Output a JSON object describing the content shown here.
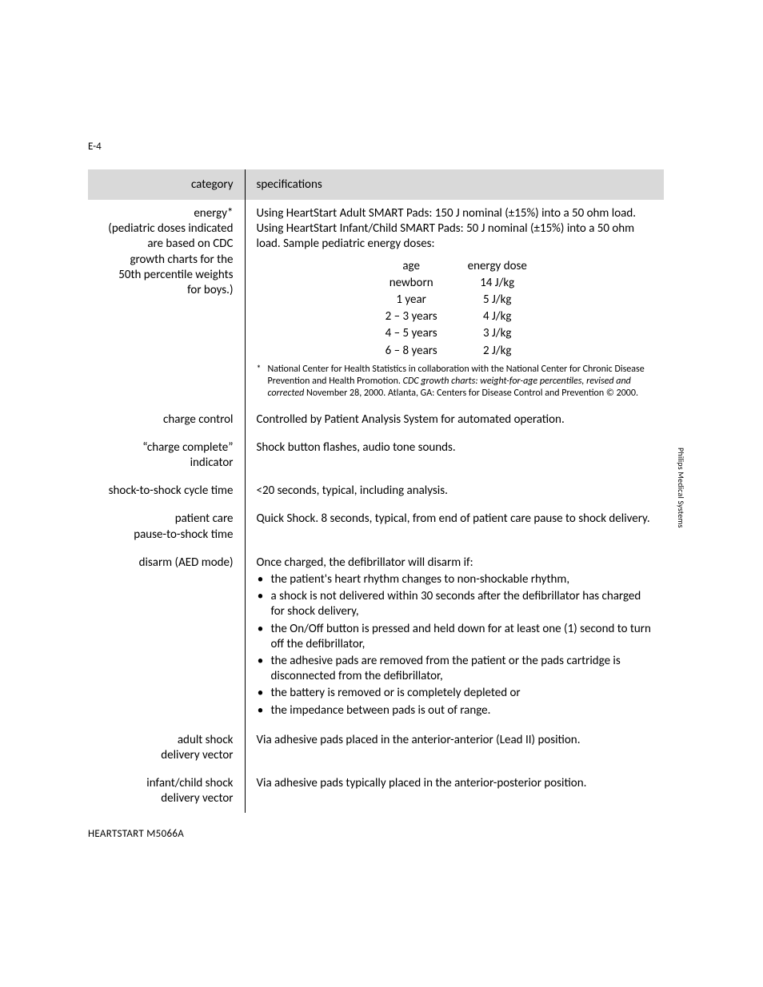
{
  "page_number": "E-4",
  "side_label": "Philips Medical Systems",
  "footer": "HEARTSTART M5066A",
  "headers": {
    "category": "category",
    "specifications": "specifications"
  },
  "rows": {
    "energy": {
      "label": "energy*\n(pediatric doses indicated are based on CDC growth charts for the 50th percentile weights for boys.)",
      "intro": "Using HeartStart Adult SMART Pads: 150 J nominal (±15%) into a 50 ohm load. Using HeartStart Infant/Child SMART Pads: 50 J nominal (±15%) into a 50 ohm load. Sample pediatric energy doses:",
      "pediatric": {
        "head_age": "age",
        "head_dose": "energy dose",
        "items": [
          {
            "age": "newborn",
            "dose": "14 J/kg"
          },
          {
            "age": "1 year",
            "dose": "5 J/kg"
          },
          {
            "age": "2 – 3 years",
            "dose": "4 J/kg"
          },
          {
            "age": "4 – 5 years",
            "dose": "3 J/kg"
          },
          {
            "age": "6 – 8 years",
            "dose": "2 J/kg"
          }
        ]
      },
      "footnote_pre": "National Center for Health Statistics in collaboration with the National Center for Chronic Disease Prevention and Health Promotion. ",
      "footnote_italic": "CDC growth charts: weight-for-age percentiles, revised and corrected",
      "footnote_post": " November 28, 2000. Atlanta, GA: Centers for Disease Control and Prevention © 2000."
    },
    "charge_control": {
      "label": "charge control",
      "text": "Controlled by Patient Analysis System for automated operation."
    },
    "charge_complete": {
      "label": "“charge complete” indicator",
      "text": "Shock button flashes, audio tone sounds."
    },
    "shock_cycle": {
      "label": "shock-to-shock cycle time",
      "text": "<20 seconds, typical, including analysis."
    },
    "pause_to_shock": {
      "label": "patient care\npause-to-shock time",
      "text": "Quick Shock. 8 seconds, typical, from end of patient care pause to shock delivery."
    },
    "disarm": {
      "label": "disarm (AED mode)",
      "intro": "Once charged, the defibrillator will disarm if:",
      "bullets": [
        "the patient's heart rhythm changes to non-shockable rhythm,",
        "a shock is not delivered within 30 seconds after the defibrillator has charged for shock delivery,",
        "the On/Off button is pressed and held down for at least one (1) second to turn off the defibrillator,",
        "the adhesive pads are removed from the patient or the pads cartridge is disconnected from the defibrillator,",
        "the battery is removed or is completely depleted or",
        "the impedance between pads is out of range."
      ]
    },
    "adult_vector": {
      "label": "adult shock\ndelivery vector",
      "text": "Via adhesive pads placed in the anterior-anterior (Lead II) position."
    },
    "infant_vector": {
      "label": "infant/child shock\ndelivery vector",
      "text": "Via adhesive pads typically placed in the anterior-posterior position."
    }
  }
}
